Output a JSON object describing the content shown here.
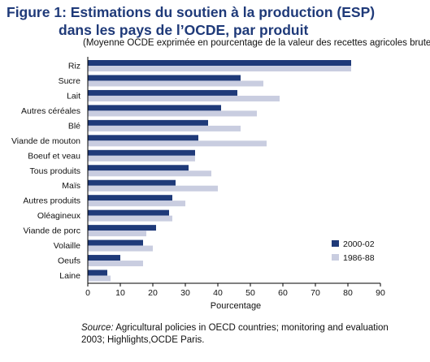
{
  "title_line1": "Figure 1: Estimations du soutien à la production (ESP)",
  "title_line2": "dans les pays de l’OCDE, par produit",
  "subtitle": "(Moyenne OCDE exprimée en pourcentage de la valeur des recettes agricoles brutes)",
  "source_label": "Source:",
  "source_text": " Agricultural policies in OECD countries; monitoring and evaluation 2003; Highlights,OCDE Paris.",
  "chart_data": {
    "type": "bar",
    "orientation": "horizontal",
    "categories": [
      "Riz",
      "Sucre",
      "Lait",
      "Autres céréales",
      "Blé",
      "Viande de mouton",
      "Boeuf et veau",
      "Tous produits",
      "Maïs",
      "Autres produits",
      "Oléagineux",
      "Viande de porc",
      "Volaille",
      "Oeufs",
      "Laine"
    ],
    "series": [
      {
        "name": "2000-02",
        "color": "#1f3a79",
        "values": [
          81,
          47,
          46,
          41,
          37,
          34,
          33,
          31,
          27,
          26,
          25,
          21,
          17,
          10,
          6
        ]
      },
      {
        "name": "1986-88",
        "color": "#c9cde0",
        "values": [
          81,
          54,
          59,
          52,
          47,
          55,
          33,
          38,
          40,
          30,
          26,
          18,
          20,
          17,
          7
        ]
      }
    ],
    "xlabel": "Pourcentage",
    "xlim": [
      0,
      90
    ],
    "xticks": [
      0,
      10,
      20,
      30,
      40,
      50,
      60,
      70,
      80,
      90
    ],
    "grid": false,
    "legend_position": "bottom-right"
  }
}
